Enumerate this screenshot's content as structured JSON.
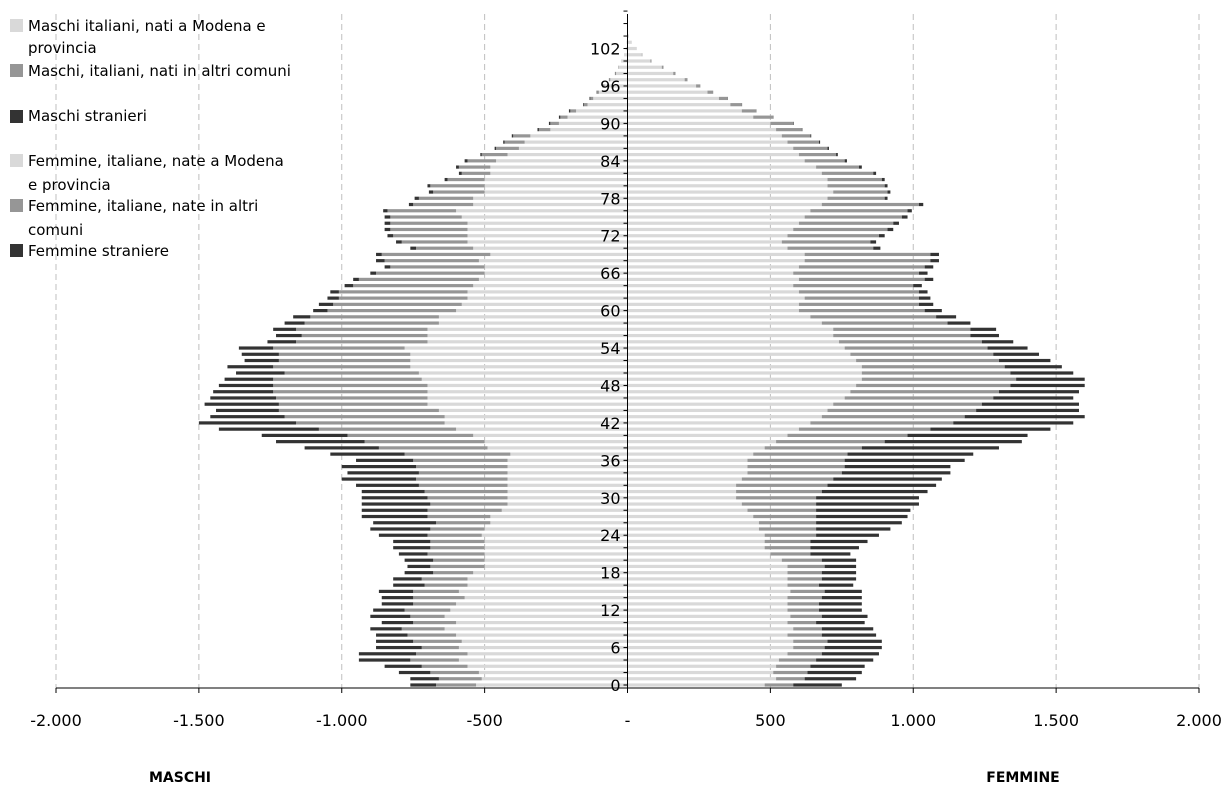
{
  "chart_data": {
    "type": "bar",
    "orientation": "horizontal-stacked-diverging",
    "x_ticks": [
      "-2.000",
      "-1.500",
      "-1.000",
      "-500",
      "-",
      "500",
      "1.000",
      "1.500",
      "2.000"
    ],
    "xlim": [
      -2000,
      2000
    ],
    "age_labels": [
      "0",
      "6",
      "12",
      "18",
      "24",
      "30",
      "36",
      "42",
      "48",
      "54",
      "60",
      "66",
      "72",
      "78",
      "84",
      "90",
      "96",
      "102"
    ],
    "ages": [
      0,
      1,
      2,
      3,
      4,
      5,
      6,
      7,
      8,
      9,
      10,
      11,
      12,
      13,
      14,
      15,
      16,
      17,
      18,
      19,
      20,
      21,
      22,
      23,
      24,
      25,
      26,
      27,
      28,
      29,
      30,
      31,
      32,
      33,
      34,
      35,
      36,
      37,
      38,
      39,
      40,
      41,
      42,
      43,
      44,
      45,
      46,
      47,
      48,
      49,
      50,
      51,
      52,
      53,
      54,
      55,
      56,
      57,
      58,
      59,
      60,
      61,
      62,
      63,
      64,
      65,
      66,
      67,
      68,
      69,
      70,
      71,
      72,
      73,
      74,
      75,
      76,
      77,
      78,
      79,
      80,
      81,
      82,
      83,
      84,
      85,
      86,
      87,
      88,
      89,
      90,
      91,
      92,
      93,
      94,
      95,
      96,
      97,
      98,
      99,
      100,
      101,
      102,
      103,
      104
    ],
    "grid": "vertical dashed",
    "legend_position": "top-left",
    "legend": [
      "Maschi italiani, nati a Modena e provincia",
      "Maschi, italiani, nati in altri comuni",
      "Maschi stranieri",
      "Femmine, italiane, nate a Modena e provincia",
      "Femmine, italiane, nate in altri comuni",
      "Femmine straniere"
    ],
    "colors": {
      "modena": "#d9d9d9",
      "altri_comuni": "#969696",
      "stranieri": "#333333",
      "grid": "#bfbfbf",
      "axis": "#000000"
    },
    "male_label": "MASCHI",
    "female_label": "FEMMINE",
    "series": [
      {
        "name": "Maschi italiani, nati a Modena e provincia",
        "values": [
          -530,
          -510,
          -520,
          -560,
          -590,
          -560,
          -590,
          -580,
          -600,
          -640,
          -600,
          -640,
          -620,
          -600,
          -570,
          -590,
          -560,
          -560,
          -540,
          -500,
          -500,
          -500,
          -500,
          -500,
          -510,
          -500,
          -480,
          -480,
          -440,
          -420,
          -420,
          -420,
          -420,
          -420,
          -420,
          -420,
          -420,
          -410,
          -490,
          -500,
          -540,
          -600,
          -640,
          -640,
          -660,
          -700,
          -700,
          -700,
          -700,
          -720,
          -730,
          -760,
          -760,
          -760,
          -780,
          -700,
          -700,
          -700,
          -660,
          -660,
          -600,
          -580,
          -560,
          -560,
          -540,
          -520,
          -500,
          -500,
          -520,
          -480,
          -540,
          -560,
          -560,
          -560,
          -560,
          -580,
          -600,
          -540,
          -540,
          -500,
          -500,
          -500,
          -480,
          -480,
          -460,
          -420,
          -380,
          -360,
          -340,
          -270,
          -240,
          -210,
          -180,
          -140,
          -120,
          -100,
          -80,
          -60,
          -40,
          -30,
          -20,
          -12,
          -6,
          -3,
          -1
        ]
      },
      {
        "name": "Maschi, italiani, nati in altri comuni",
        "values": [
          -140,
          -150,
          -170,
          -160,
          -170,
          -180,
          -130,
          -170,
          -170,
          -150,
          -150,
          -120,
          -160,
          -150,
          -180,
          -160,
          -150,
          -160,
          -140,
          -190,
          -180,
          -200,
          -190,
          -190,
          -190,
          -190,
          -190,
          -220,
          -260,
          -270,
          -280,
          -290,
          -310,
          -320,
          -310,
          -320,
          -330,
          -370,
          -380,
          -420,
          -440,
          -480,
          -520,
          -560,
          -560,
          -520,
          -530,
          -540,
          -540,
          -520,
          -470,
          -480,
          -460,
          -460,
          -460,
          -460,
          -440,
          -460,
          -470,
          -450,
          -450,
          -450,
          -450,
          -450,
          -420,
          -420,
          -380,
          -330,
          -330,
          -380,
          -200,
          -230,
          -260,
          -270,
          -270,
          -250,
          -240,
          -210,
          -190,
          -180,
          -190,
          -130,
          -100,
          -110,
          -100,
          -90,
          -80,
          -70,
          -60,
          -40,
          -30,
          -25,
          -20,
          -12,
          -10,
          -6,
          -5,
          -4,
          -3,
          -2,
          -1,
          0,
          0,
          0,
          0
        ]
      },
      {
        "name": "Maschi stranieri",
        "values": [
          -90,
          -100,
          -110,
          -130,
          -180,
          -200,
          -160,
          -130,
          -110,
          -110,
          -110,
          -140,
          -110,
          -110,
          -110,
          -120,
          -110,
          -100,
          -100,
          -80,
          -100,
          -100,
          -130,
          -130,
          -170,
          -210,
          -220,
          -230,
          -230,
          -240,
          -230,
          -220,
          -220,
          -260,
          -250,
          -260,
          -200,
          -260,
          -260,
          -310,
          -300,
          -350,
          -340,
          -260,
          -220,
          -260,
          -230,
          -210,
          -190,
          -170,
          -170,
          -160,
          -120,
          -130,
          -120,
          -100,
          -90,
          -80,
          -70,
          -60,
          -50,
          -50,
          -40,
          -30,
          -30,
          -20,
          -20,
          -20,
          -30,
          -20,
          -20,
          -20,
          -20,
          -20,
          -20,
          -20,
          -15,
          -15,
          -15,
          -15,
          -10,
          -10,
          -10,
          -10,
          -10,
          -5,
          -5,
          -5,
          -5,
          -5,
          -5,
          -5,
          -5,
          -3,
          -3,
          -2,
          -2,
          -1,
          -1,
          0,
          0,
          0,
          0,
          0,
          0
        ]
      },
      {
        "name": "Femmine, italiane, nate a Modena e provincia",
        "values": [
          480,
          520,
          510,
          520,
          530,
          560,
          580,
          580,
          560,
          580,
          560,
          570,
          560,
          560,
          560,
          570,
          560,
          560,
          560,
          560,
          540,
          500,
          480,
          480,
          480,
          460,
          460,
          440,
          420,
          400,
          380,
          380,
          380,
          400,
          420,
          420,
          420,
          440,
          480,
          520,
          560,
          600,
          640,
          680,
          700,
          720,
          760,
          780,
          800,
          820,
          820,
          820,
          800,
          780,
          760,
          740,
          720,
          720,
          680,
          640,
          600,
          600,
          620,
          600,
          580,
          600,
          580,
          600,
          620,
          620,
          560,
          540,
          560,
          580,
          600,
          620,
          640,
          680,
          700,
          720,
          700,
          700,
          680,
          660,
          620,
          600,
          580,
          560,
          540,
          520,
          500,
          440,
          400,
          360,
          320,
          280,
          240,
          200,
          160,
          120,
          80,
          50,
          30,
          15,
          5
        ]
      },
      {
        "name": "Femmine, italiane, nate in altri comuni",
        "values": [
          100,
          100,
          120,
          120,
          130,
          120,
          110,
          120,
          120,
          100,
          100,
          110,
          110,
          110,
          120,
          120,
          110,
          120,
          120,
          130,
          140,
          140,
          160,
          160,
          180,
          200,
          200,
          220,
          240,
          260,
          280,
          300,
          320,
          320,
          330,
          340,
          340,
          330,
          340,
          380,
          420,
          460,
          500,
          500,
          520,
          520,
          520,
          520,
          540,
          540,
          520,
          500,
          500,
          500,
          500,
          500,
          480,
          480,
          440,
          440,
          440,
          420,
          400,
          420,
          420,
          440,
          440,
          440,
          440,
          440,
          300,
          310,
          320,
          330,
          330,
          340,
          340,
          340,
          200,
          190,
          200,
          190,
          180,
          150,
          140,
          130,
          120,
          110,
          100,
          90,
          80,
          70,
          50,
          40,
          30,
          20,
          15,
          10,
          8,
          6,
          4,
          2,
          1,
          0,
          0
        ]
      },
      {
        "name": "Femmine straniere",
        "values": [
          170,
          180,
          190,
          190,
          200,
          200,
          200,
          190,
          190,
          180,
          170,
          160,
          150,
          150,
          140,
          130,
          120,
          120,
          120,
          110,
          120,
          140,
          170,
          200,
          220,
          260,
          300,
          320,
          330,
          360,
          360,
          370,
          380,
          380,
          380,
          370,
          420,
          440,
          480,
          480,
          420,
          420,
          420,
          420,
          360,
          340,
          280,
          280,
          260,
          240,
          220,
          200,
          180,
          160,
          140,
          110,
          100,
          90,
          80,
          70,
          60,
          50,
          40,
          30,
          30,
          30,
          30,
          30,
          30,
          30,
          25,
          20,
          20,
          20,
          20,
          20,
          15,
          15,
          10,
          10,
          10,
          10,
          10,
          10,
          8,
          6,
          5,
          4,
          3,
          2,
          2,
          1,
          1,
          1,
          1,
          0,
          0,
          0,
          0,
          0,
          0,
          0,
          0,
          0,
          0
        ]
      }
    ]
  }
}
